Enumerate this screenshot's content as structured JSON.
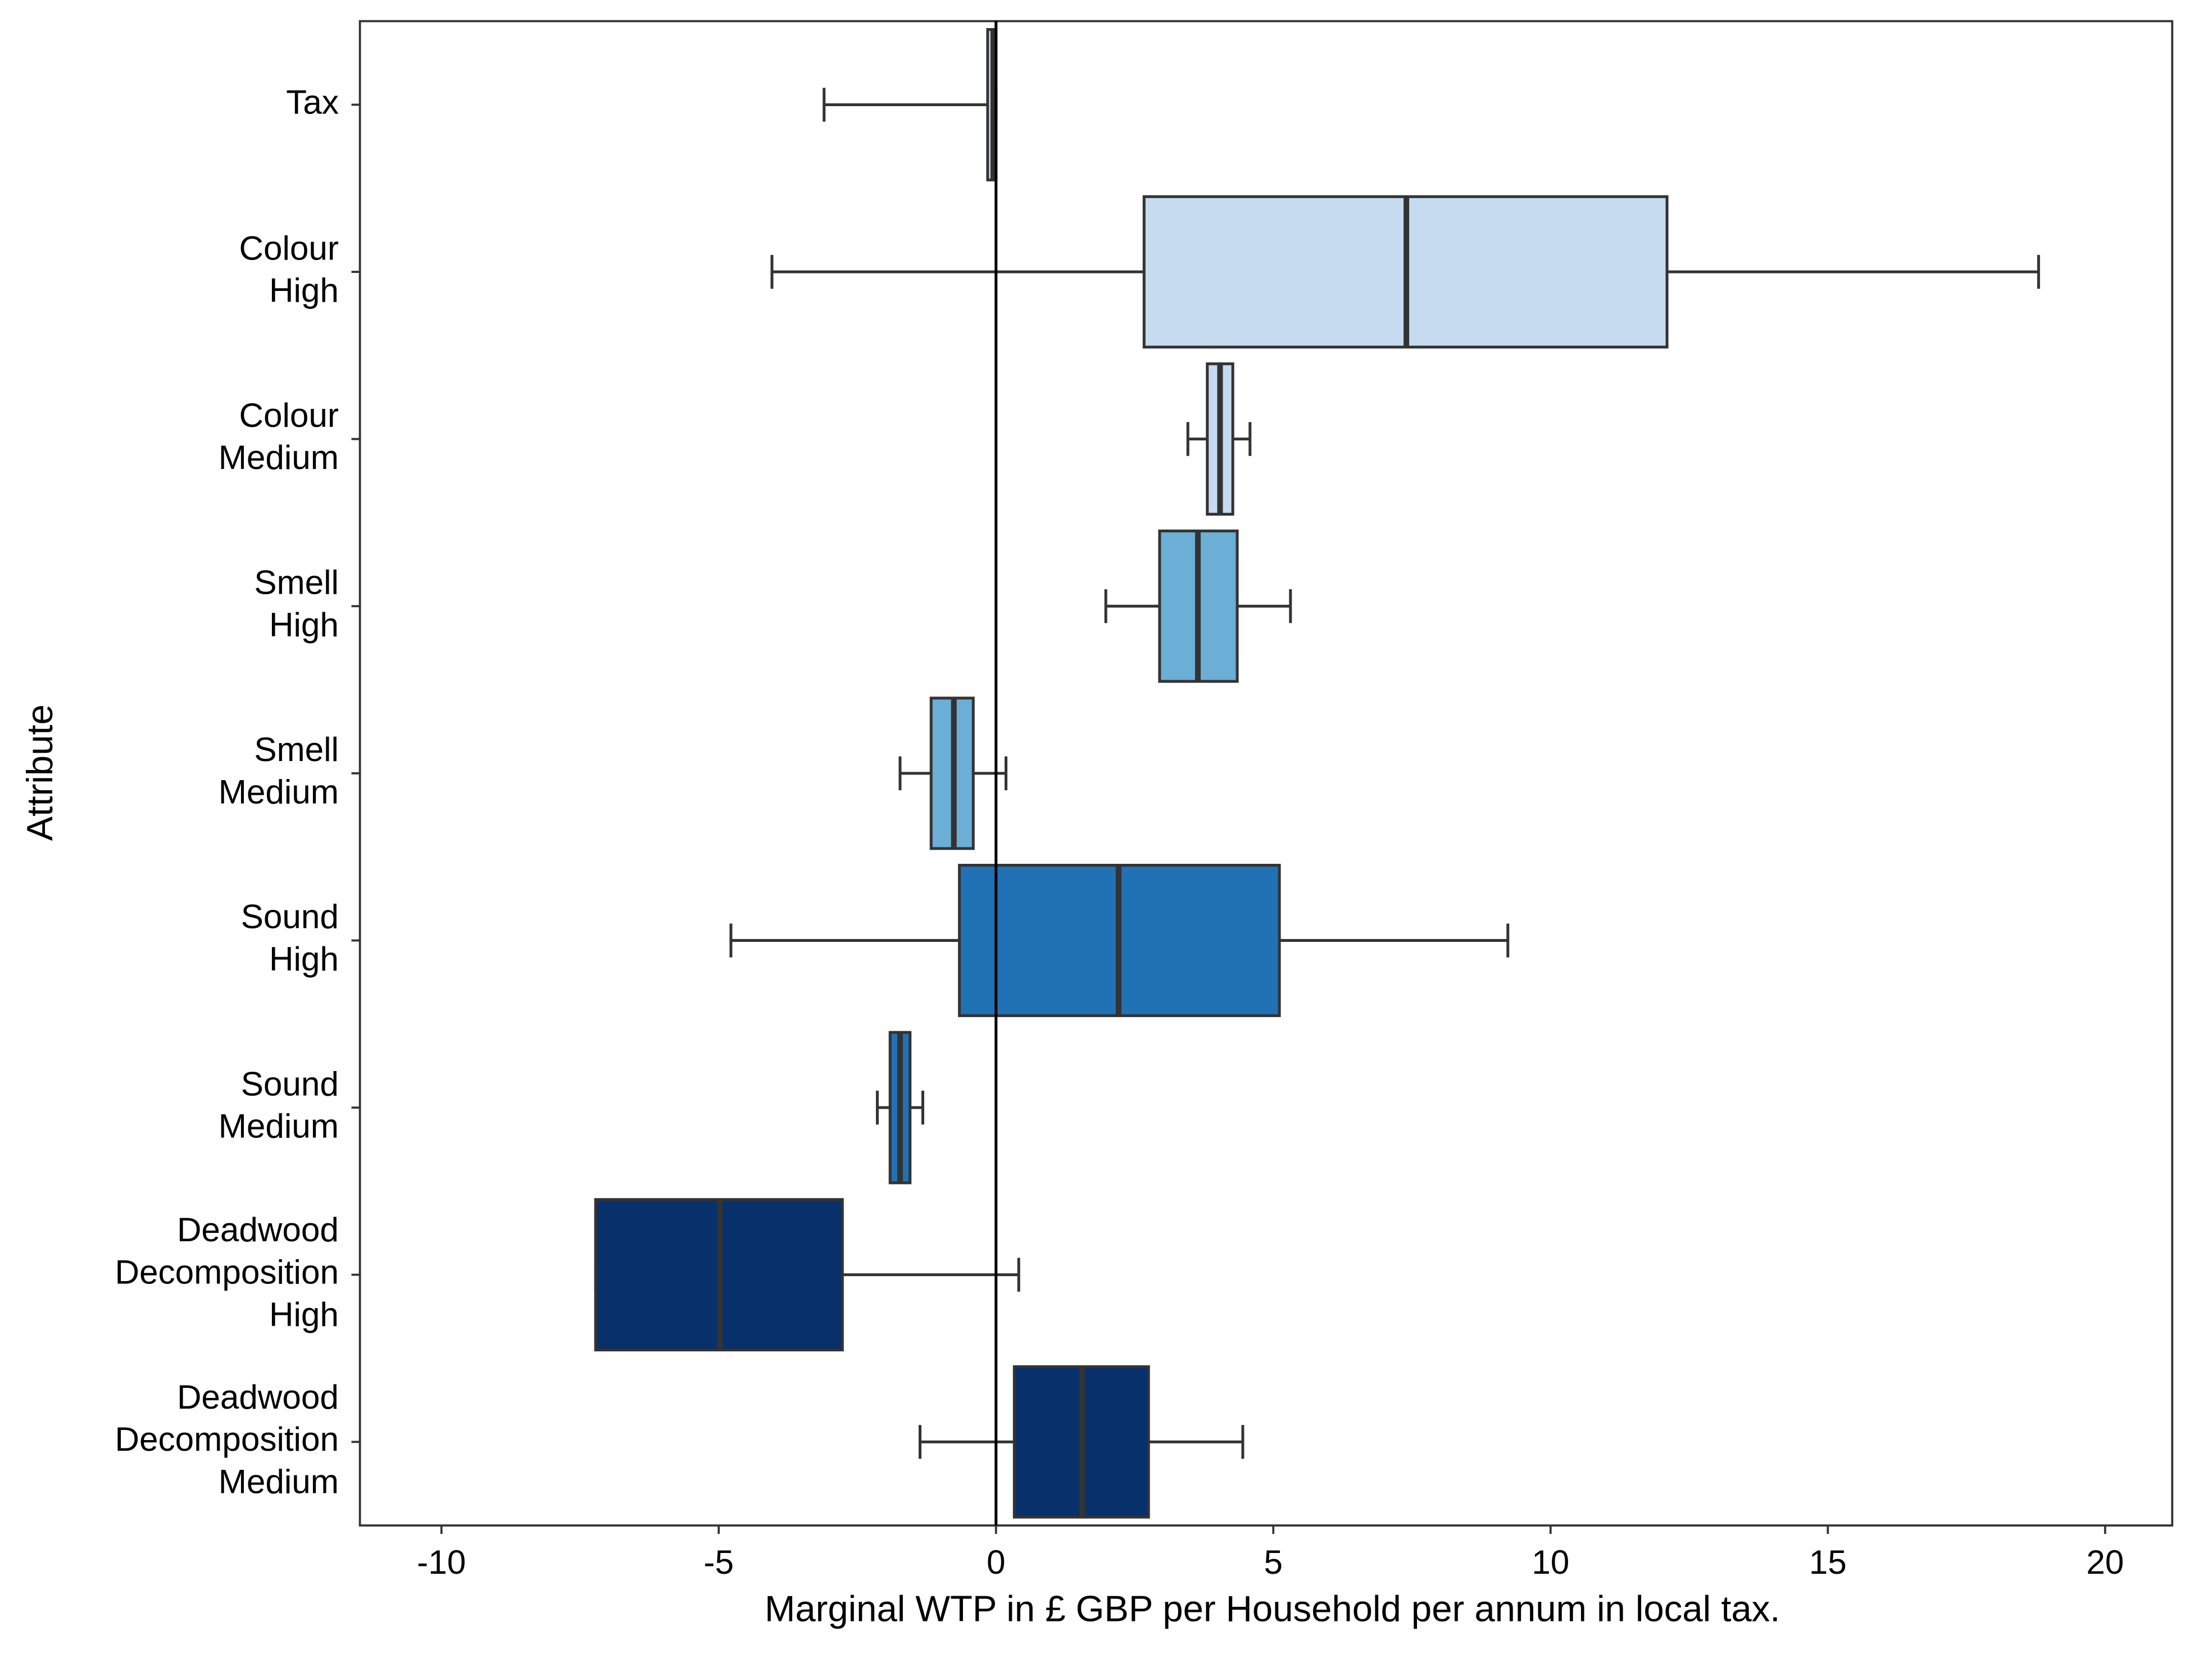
{
  "chart_data": {
    "type": "boxplot",
    "orientation": "horizontal",
    "x_label": "Marginal WTP in £ GBP per Household per annum in local tax.",
    "y_label": "Attribute",
    "categories": [
      [
        "Tax"
      ],
      [
        "Colour",
        "High"
      ],
      [
        "Colour",
        "Medium"
      ],
      [
        "Smell",
        "High"
      ],
      [
        "Smell",
        "Medium"
      ],
      [
        "Sound",
        "High"
      ],
      [
        "Sound",
        "Medium"
      ],
      [
        "Deadwood",
        "Decomposition",
        "High"
      ],
      [
        "Deadwood",
        "Decomposition",
        "Medium"
      ]
    ],
    "boxes": [
      {
        "min": -3.1,
        "q1": -0.15,
        "median": -0.05,
        "q3": 0,
        "max": 0,
        "color": "#deebf7"
      },
      {
        "min": -4.04,
        "q1": 2.67,
        "median": 7.4,
        "q3": 12.1,
        "max": 18.8,
        "color": "#c6dbef"
      },
      {
        "min": 3.46,
        "q1": 3.81,
        "median": 4.04,
        "q3": 4.27,
        "max": 4.58,
        "color": "#c6dbef"
      },
      {
        "min": 1.98,
        "q1": 2.95,
        "median": 3.64,
        "q3": 4.35,
        "max": 5.31,
        "color": "#6baed6"
      },
      {
        "min": -1.73,
        "q1": -1.17,
        "median": -0.76,
        "q3": -0.41,
        "max": 0.18,
        "color": "#6baed6"
      },
      {
        "min": -4.78,
        "q1": -0.66,
        "median": 2.21,
        "q3": 5.11,
        "max": 9.23,
        "color": "#2171b5"
      },
      {
        "min": -2.14,
        "q1": -1.91,
        "median": -1.73,
        "q3": -1.55,
        "max": -1.32,
        "color": "#2171b5"
      },
      {
        "min": -7.22,
        "q1": -7.22,
        "median": -4.98,
        "q3": -2.77,
        "max": 0.41,
        "color": "#08306b"
      },
      {
        "min": -1.37,
        "q1": 0.33,
        "median": 1.55,
        "q3": 2.75,
        "max": 4.45,
        "color": "#08306b"
      }
    ],
    "reference_line": 0,
    "xlim": [
      -11.47,
      21.21
    ],
    "xticks": [
      -10,
      -5,
      0,
      5,
      10,
      15,
      20
    ]
  }
}
